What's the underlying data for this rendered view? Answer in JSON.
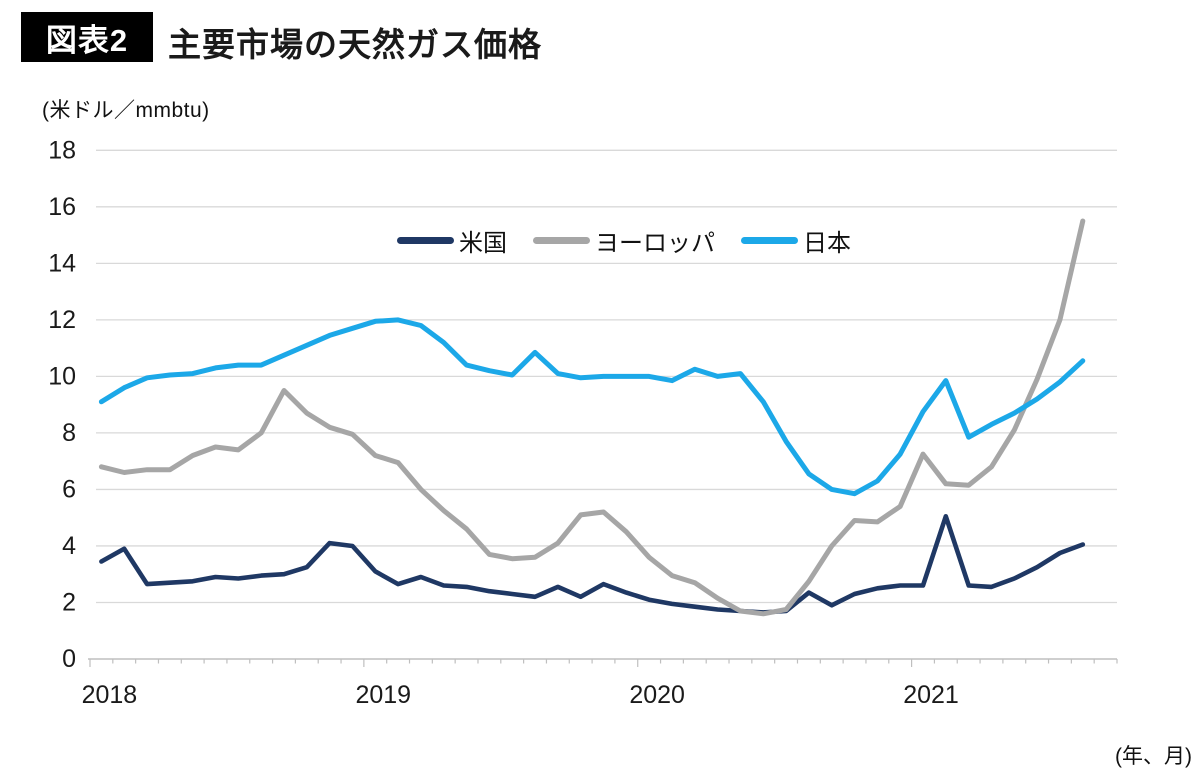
{
  "header": {
    "badge": "図表2",
    "title": "主要市場の天然ガス価格"
  },
  "chart": {
    "unit_label": "(米ドル／mmbtu)",
    "axis_note": "(年、月)",
    "y_tick_labels": [
      "0",
      "2",
      "4",
      "6",
      "8",
      "10",
      "12",
      "14",
      "16",
      "18"
    ],
    "x_year_labels": [
      "2018",
      "2019",
      "2020",
      "2021"
    ],
    "colors": {
      "us": "#1F3864",
      "europe": "#A6A6A6",
      "japan": "#1CA8E8",
      "gridline": "#D9D9D9",
      "axis": "#BFBFBF",
      "text": "#1a1a1a"
    }
  },
  "legend": [
    {
      "label": "米国",
      "color": "#1F3864"
    },
    {
      "label": "ヨーロッパ",
      "color": "#A6A6A6"
    },
    {
      "label": "日本",
      "color": "#1CA8E8"
    }
  ],
  "chart_data": {
    "type": "line",
    "title": "主要市場の天然ガス価格",
    "ylabel": "米ドル／mmbtu",
    "xlabel": "年、月",
    "ylim": [
      0,
      18
    ],
    "y_ticks": [
      0,
      2,
      4,
      6,
      8,
      10,
      12,
      14,
      16,
      18
    ],
    "grid": "horizontal",
    "legend_position": "top-center",
    "x": [
      "2018-01",
      "2018-02",
      "2018-03",
      "2018-04",
      "2018-05",
      "2018-06",
      "2018-07",
      "2018-08",
      "2018-09",
      "2018-10",
      "2018-11",
      "2018-12",
      "2019-01",
      "2019-02",
      "2019-03",
      "2019-04",
      "2019-05",
      "2019-06",
      "2019-07",
      "2019-08",
      "2019-09",
      "2019-10",
      "2019-11",
      "2019-12",
      "2020-01",
      "2020-02",
      "2020-03",
      "2020-04",
      "2020-05",
      "2020-06",
      "2020-07",
      "2020-08",
      "2020-09",
      "2020-10",
      "2020-11",
      "2020-12",
      "2021-01",
      "2021-02",
      "2021-03",
      "2021-04",
      "2021-05",
      "2021-06",
      "2021-07",
      "2021-08"
    ],
    "series": [
      {
        "name": "米国",
        "color": "#1F3864",
        "values": [
          3.45,
          3.9,
          2.65,
          2.7,
          2.75,
          2.9,
          2.85,
          2.95,
          3.0,
          3.25,
          4.1,
          4.0,
          3.1,
          2.65,
          2.9,
          2.6,
          2.55,
          2.4,
          2.3,
          2.2,
          2.55,
          2.2,
          2.65,
          2.35,
          2.1,
          1.95,
          1.85,
          1.75,
          1.7,
          1.65,
          1.7,
          2.35,
          1.9,
          2.3,
          2.5,
          2.6,
          2.6,
          5.05,
          2.6,
          2.55,
          2.85,
          3.25,
          3.75,
          4.05
        ]
      },
      {
        "name": "ヨーロッパ",
        "color": "#A6A6A6",
        "values": [
          6.8,
          6.6,
          6.7,
          6.7,
          7.2,
          7.5,
          7.4,
          8.0,
          9.5,
          8.7,
          8.2,
          7.95,
          7.2,
          6.95,
          6.0,
          5.25,
          4.6,
          3.7,
          3.55,
          3.6,
          4.1,
          5.1,
          5.2,
          4.5,
          3.6,
          2.95,
          2.7,
          2.15,
          1.7,
          1.6,
          1.75,
          2.75,
          4.0,
          4.9,
          4.85,
          5.4,
          7.25,
          6.2,
          6.15,
          6.8,
          8.1,
          9.9,
          12.0,
          15.5
        ]
      },
      {
        "name": "日本",
        "color": "#1CA8E8",
        "values": [
          9.1,
          9.6,
          9.95,
          10.05,
          10.1,
          10.3,
          10.4,
          10.4,
          10.75,
          11.1,
          11.45,
          11.7,
          11.95,
          12.0,
          11.8,
          11.2,
          10.4,
          10.2,
          10.05,
          10.85,
          10.1,
          9.95,
          10.0,
          10.0,
          10.0,
          9.85,
          10.25,
          10.0,
          10.1,
          9.1,
          7.7,
          6.55,
          6.0,
          5.85,
          6.3,
          7.25,
          8.75,
          9.85,
          7.85,
          8.3,
          8.7,
          9.2,
          9.8,
          10.55
        ]
      }
    ]
  }
}
